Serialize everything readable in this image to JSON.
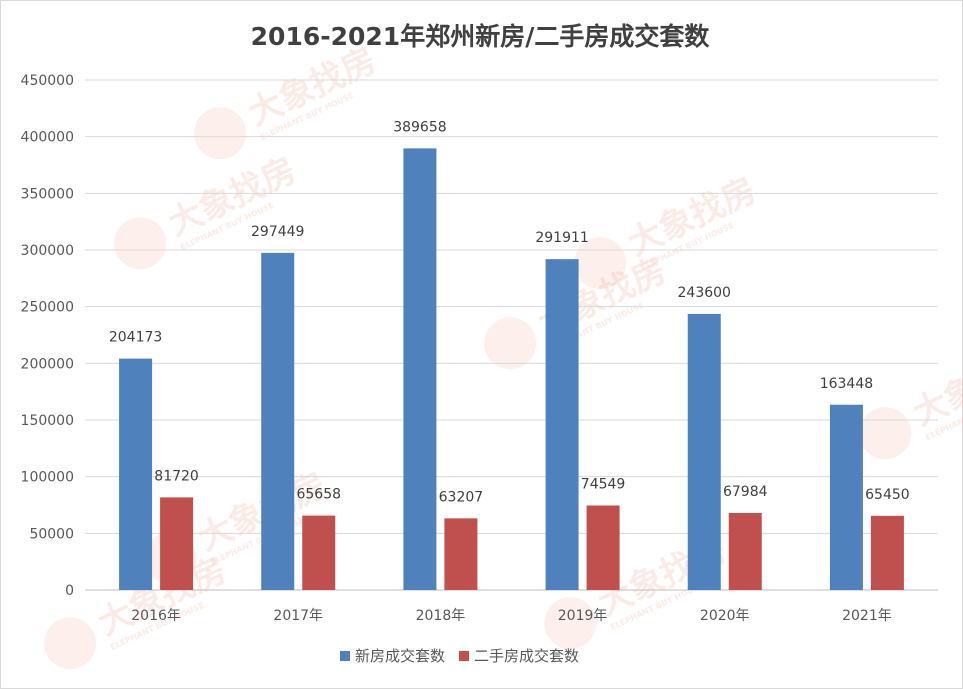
{
  "chart_data": {
    "type": "bar",
    "title": "2016-2021年郑州新房/二手房成交套数",
    "categories": [
      "2016年",
      "2017年",
      "2018年",
      "2019年",
      "2020年",
      "2021年"
    ],
    "series": [
      {
        "name": "新房成交套数",
        "values": [
          204173,
          297449,
          389658,
          291911,
          243600,
          163448
        ],
        "color": "#4f81bd"
      },
      {
        "name": "二手房成交套数",
        "values": [
          81720,
          65658,
          63207,
          74549,
          67984,
          65450
        ],
        "color": "#c0504d"
      }
    ],
    "ylim": [
      0,
      450000
    ],
    "yticks": [
      "0",
      "50000",
      "100000",
      "150000",
      "200000",
      "250000",
      "300000",
      "350000",
      "400000",
      "450000"
    ],
    "grid": true,
    "legend_position": "bottom",
    "data_labels": true
  },
  "watermark": {
    "text": "大象找房",
    "subtext": "ELEPHANT BUY HOUSE"
  }
}
